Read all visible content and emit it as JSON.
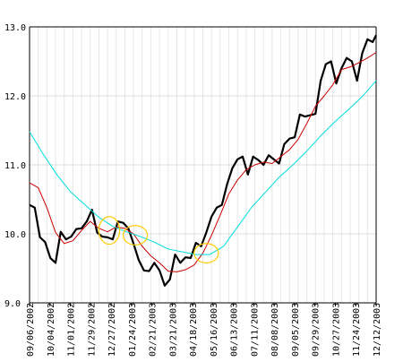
{
  "chart_data": {
    "type": "line",
    "xlim_label": [
      "09/06/2002",
      "12/12/2003"
    ],
    "ylim": [
      9.0,
      13.0
    ],
    "y_ticks": [
      9.0,
      10.0,
      11.0,
      12.0,
      13.0
    ],
    "y_tick_labels": [
      "9.0",
      "10.0",
      "11.0",
      "12.0",
      "13.0"
    ],
    "x_ticks": [
      {
        "pos": 0,
        "label": "09/06/2002"
      },
      {
        "pos": 20,
        "label": "10/04/2002"
      },
      {
        "pos": 40,
        "label": "11/01/2002"
      },
      {
        "pos": 60,
        "label": "11/29/2002"
      },
      {
        "pos": 80,
        "label": "12/27/2002"
      },
      {
        "pos": 100,
        "label": "01/24/2003"
      },
      {
        "pos": 120,
        "label": "02/21/2003"
      },
      {
        "pos": 140,
        "label": "03/21/2003"
      },
      {
        "pos": 160,
        "label": "04/18/2003"
      },
      {
        "pos": 180,
        "label": "05/16/2003"
      },
      {
        "pos": 200,
        "label": "06/13/2003"
      },
      {
        "pos": 220,
        "label": "07/11/2003"
      },
      {
        "pos": 240,
        "label": "08/08/2003"
      },
      {
        "pos": 260,
        "label": "09/05/2003"
      },
      {
        "pos": 280,
        "label": "09/29/2003"
      },
      {
        "pos": 300,
        "label": "10/27/2003"
      },
      {
        "pos": 320,
        "label": "11/24/2003"
      },
      {
        "pos": 340,
        "label": "12/12/2003"
      }
    ],
    "grid": true,
    "series": [
      {
        "color": "#000000",
        "points": [
          [
            0,
            10.42
          ],
          [
            3,
            10.38
          ],
          [
            6,
            9.95
          ],
          [
            9,
            9.88
          ],
          [
            12,
            9.65
          ],
          [
            15,
            9.58
          ],
          [
            18,
            10.03
          ],
          [
            21,
            9.92
          ],
          [
            24,
            9.96
          ],
          [
            27,
            10.07
          ],
          [
            30,
            10.08
          ],
          [
            33,
            10.18
          ],
          [
            36,
            10.35
          ],
          [
            39,
            10.02
          ],
          [
            42,
            9.96
          ],
          [
            45,
            9.95
          ],
          [
            48,
            9.92
          ],
          [
            51,
            10.18
          ],
          [
            54,
            10.16
          ],
          [
            57,
            10.08
          ],
          [
            60,
            9.86
          ],
          [
            63,
            9.62
          ],
          [
            66,
            9.47
          ],
          [
            69,
            9.46
          ],
          [
            72,
            9.58
          ],
          [
            75,
            9.47
          ],
          [
            78,
            9.25
          ],
          [
            81,
            9.34
          ],
          [
            84,
            9.7
          ],
          [
            87,
            9.58
          ],
          [
            90,
            9.66
          ],
          [
            93,
            9.65
          ],
          [
            96,
            9.87
          ],
          [
            99,
            9.82
          ],
          [
            102,
            10.02
          ],
          [
            105,
            10.25
          ],
          [
            108,
            10.38
          ],
          [
            111,
            10.42
          ],
          [
            114,
            10.72
          ],
          [
            117,
            10.95
          ],
          [
            120,
            11.08
          ],
          [
            123,
            11.12
          ],
          [
            126,
            10.86
          ],
          [
            129,
            11.12
          ],
          [
            132,
            11.07
          ],
          [
            135,
            11.0
          ],
          [
            138,
            11.14
          ],
          [
            141,
            11.08
          ],
          [
            144,
            11.02
          ],
          [
            147,
            11.3
          ],
          [
            150,
            11.38
          ],
          [
            153,
            11.4
          ],
          [
            156,
            11.73
          ],
          [
            159,
            11.7
          ],
          [
            162,
            11.72
          ],
          [
            165,
            11.74
          ],
          [
            168,
            12.22
          ],
          [
            171,
            12.46
          ],
          [
            174,
            12.5
          ],
          [
            177,
            12.18
          ],
          [
            180,
            12.4
          ],
          [
            183,
            12.55
          ],
          [
            186,
            12.5
          ],
          [
            189,
            12.22
          ],
          [
            192,
            12.62
          ],
          [
            195,
            12.82
          ],
          [
            198,
            12.78
          ],
          [
            200,
            12.88
          ]
        ]
      },
      {
        "color": "#cc0000",
        "points": [
          [
            0,
            10.74
          ],
          [
            5,
            10.67
          ],
          [
            10,
            10.38
          ],
          [
            15,
            10.02
          ],
          [
            20,
            9.86
          ],
          [
            25,
            9.9
          ],
          [
            30,
            10.05
          ],
          [
            35,
            10.18
          ],
          [
            40,
            10.08
          ],
          [
            45,
            10.03
          ],
          [
            50,
            10.1
          ],
          [
            55,
            10.08
          ],
          [
            60,
            10.0
          ],
          [
            65,
            9.82
          ],
          [
            70,
            9.68
          ],
          [
            75,
            9.58
          ],
          [
            80,
            9.46
          ],
          [
            85,
            9.45
          ],
          [
            90,
            9.48
          ],
          [
            95,
            9.55
          ],
          [
            100,
            9.72
          ],
          [
            105,
            9.98
          ],
          [
            110,
            10.27
          ],
          [
            115,
            10.58
          ],
          [
            120,
            10.78
          ],
          [
            125,
            10.93
          ],
          [
            130,
            11.0
          ],
          [
            135,
            11.04
          ],
          [
            140,
            11.02
          ],
          [
            145,
            11.12
          ],
          [
            150,
            11.22
          ],
          [
            155,
            11.37
          ],
          [
            160,
            11.6
          ],
          [
            165,
            11.85
          ],
          [
            170,
            12.0
          ],
          [
            175,
            12.16
          ],
          [
            180,
            12.38
          ],
          [
            185,
            12.42
          ],
          [
            190,
            12.48
          ],
          [
            195,
            12.55
          ],
          [
            200,
            12.63
          ]
        ]
      },
      {
        "color": "#00dddd",
        "points": [
          [
            0,
            11.48
          ],
          [
            8,
            11.15
          ],
          [
            16,
            10.85
          ],
          [
            24,
            10.6
          ],
          [
            32,
            10.42
          ],
          [
            40,
            10.24
          ],
          [
            48,
            10.11
          ],
          [
            56,
            10.03
          ],
          [
            64,
            9.96
          ],
          [
            72,
            9.88
          ],
          [
            80,
            9.78
          ],
          [
            88,
            9.74
          ],
          [
            96,
            9.7
          ],
          [
            104,
            9.7
          ],
          [
            112,
            9.82
          ],
          [
            120,
            10.1
          ],
          [
            128,
            10.38
          ],
          [
            136,
            10.6
          ],
          [
            144,
            10.82
          ],
          [
            152,
            11.0
          ],
          [
            160,
            11.2
          ],
          [
            168,
            11.42
          ],
          [
            176,
            11.62
          ],
          [
            184,
            11.8
          ],
          [
            192,
            11.99
          ],
          [
            200,
            12.22
          ]
        ]
      }
    ],
    "annotations": [
      {
        "type": "ellipse",
        "color": "#ffcc00",
        "cx": 46,
        "cy": 10.05,
        "rx": 6,
        "ry": 0.2
      },
      {
        "type": "ellipse",
        "color": "#ffcc00",
        "cx": 61,
        "cy": 9.98,
        "rx": 7,
        "ry": 0.14
      },
      {
        "type": "ellipse",
        "color": "#ffcc00",
        "cx": 102,
        "cy": 9.72,
        "rx": 7,
        "ry": 0.14
      }
    ]
  }
}
